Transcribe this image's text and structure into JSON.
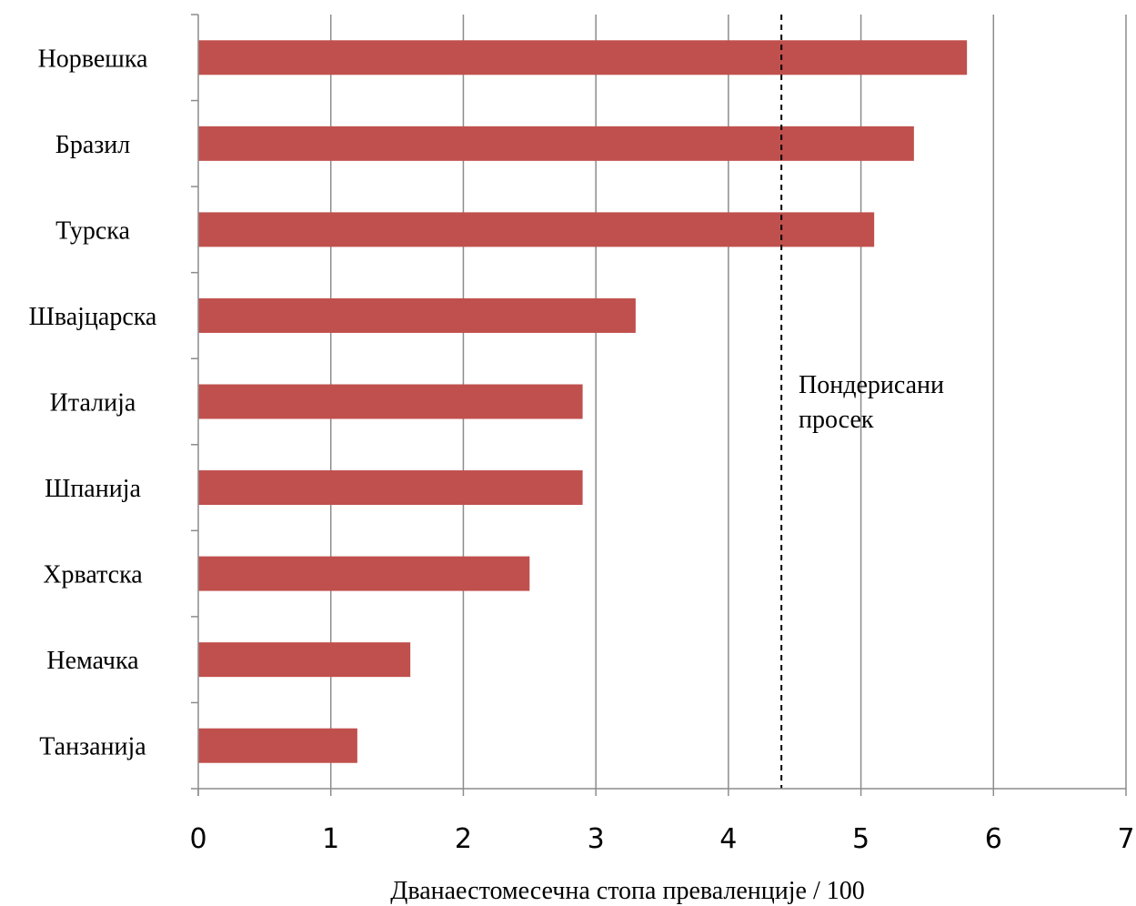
{
  "chart_data": {
    "type": "bar",
    "orientation": "horizontal",
    "categories": [
      "Норвешка",
      "Бразил",
      "Турска",
      "Швајцарска",
      "Италија",
      "Шпанија",
      "Хрватска",
      "Немачка",
      "Танзанија"
    ],
    "values": [
      5.8,
      5.4,
      5.1,
      3.3,
      2.9,
      2.9,
      2.5,
      1.6,
      1.2
    ],
    "xlabel": "Дванаестомесечна стопа преваленције / 100",
    "ylabel": "",
    "xlim": [
      0,
      7
    ],
    "xticks": [
      "0",
      "1",
      "2",
      "3",
      "4",
      "5",
      "6",
      "7"
    ],
    "grid": "vertical",
    "bar_color": "#c0504d",
    "reference_line": {
      "value": 4.4,
      "style": "dashed",
      "label_lines": [
        "Пондерисани",
        "просек"
      ]
    }
  }
}
